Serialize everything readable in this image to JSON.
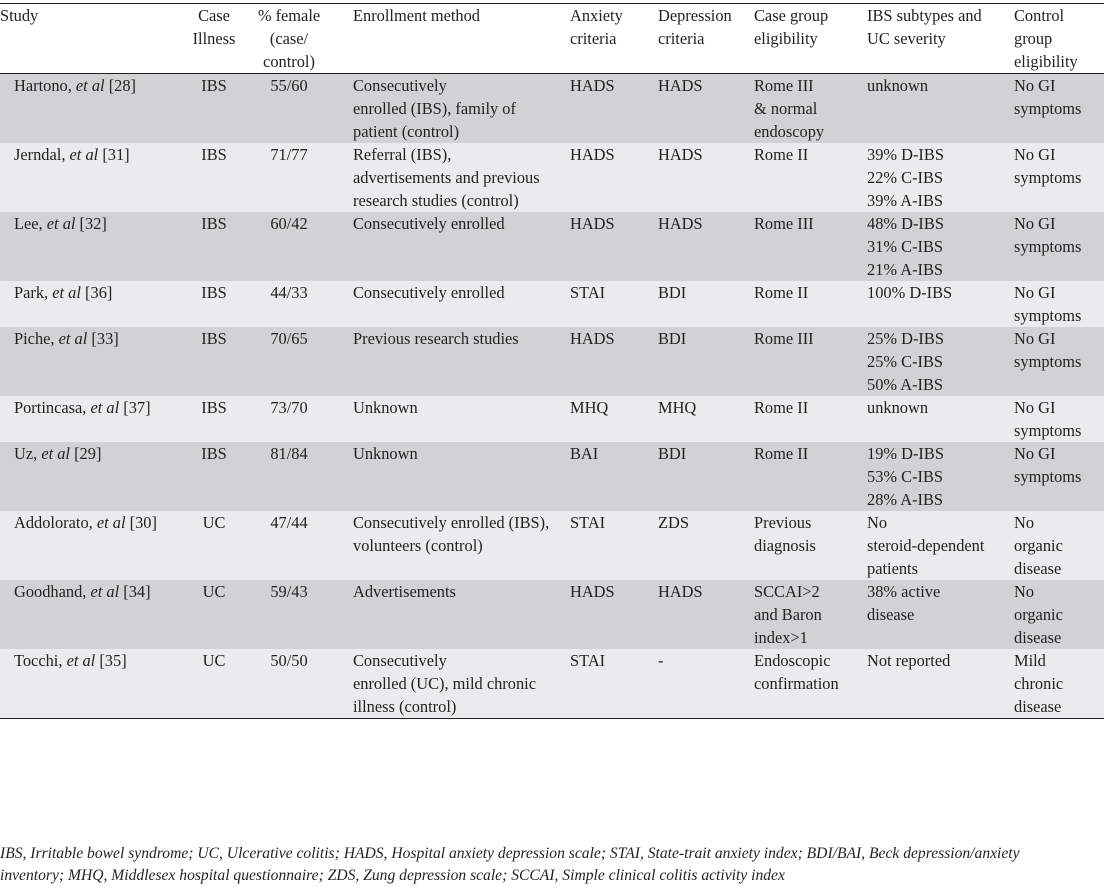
{
  "table": {
    "headers": {
      "study": [
        "Study"
      ],
      "case_illness": [
        "Case",
        "Illness"
      ],
      "pct_female": [
        "% female",
        "(case/",
        "control)"
      ],
      "enrollment": [
        "Enrollment method"
      ],
      "anxiety": [
        "Anxiety",
        "criteria"
      ],
      "depression": [
        "Depression",
        "criteria"
      ],
      "case_eligibility": [
        "Case group",
        "eligibility"
      ],
      "subtypes": [
        "IBS subtypes and",
        "UC severity"
      ],
      "control_eligibility": [
        "Control",
        "group",
        "eligibility"
      ]
    },
    "rows": [
      {
        "author": "Hartono, ",
        "etal": "et al",
        "ref": " [28]",
        "illness": "IBS",
        "female": "55/60",
        "enrollment": [
          "Consecutively",
          "enrolled (IBS), family of",
          "patient (control)"
        ],
        "anxiety": "HADS",
        "depression": "HADS",
        "case_elig": [
          "Rome III",
          "& normal",
          "endoscopy"
        ],
        "subtypes": [
          "unknown"
        ],
        "control": [
          "No GI",
          "symptoms"
        ]
      },
      {
        "author": "Jerndal, ",
        "etal": "et al",
        "ref": " [31]",
        "illness": "IBS",
        "female": "71/77",
        "enrollment": [
          "Referral (IBS),",
          "advertisements and previous",
          "research studies (control)"
        ],
        "anxiety": "HADS",
        "depression": "HADS",
        "case_elig": [
          "Rome II"
        ],
        "subtypes": [
          "39% D-IBS",
          "22% C-IBS",
          "39% A-IBS"
        ],
        "control": [
          "No GI",
          "symptoms"
        ]
      },
      {
        "author": "Lee, ",
        "etal": "et al",
        "ref": " [32]",
        "illness": "IBS",
        "female": "60/42",
        "enrollment": [
          "Consecutively enrolled"
        ],
        "anxiety": "HADS",
        "depression": "HADS",
        "case_elig": [
          "Rome III"
        ],
        "subtypes": [
          "48% D-IBS",
          "31% C-IBS",
          "21% A-IBS"
        ],
        "control": [
          "No GI",
          "symptoms"
        ]
      },
      {
        "author": "Park, ",
        "etal": "et al",
        "ref": " [36]",
        "illness": "IBS",
        "female": "44/33",
        "enrollment": [
          "Consecutively enrolled"
        ],
        "anxiety": "STAI",
        "depression": "BDI",
        "case_elig": [
          "Rome II"
        ],
        "subtypes": [
          "100% D-IBS"
        ],
        "control": [
          "No GI",
          "symptoms"
        ]
      },
      {
        "author": "Piche, ",
        "etal": "et al",
        "ref": " [33]",
        "illness": "IBS",
        "female": "70/65",
        "enrollment": [
          "Previous research studies"
        ],
        "anxiety": "HADS",
        "depression": "BDI",
        "case_elig": [
          "Rome III"
        ],
        "subtypes": [
          "25% D-IBS",
          "25% C-IBS",
          "50% A-IBS"
        ],
        "control": [
          "No GI",
          "symptoms"
        ]
      },
      {
        "author": "Portincasa, ",
        "etal": "et al",
        "ref": " [37]",
        "illness": "IBS",
        "female": "73/70",
        "enrollment": [
          "Unknown"
        ],
        "anxiety": "MHQ",
        "depression": "MHQ",
        "case_elig": [
          "Rome II"
        ],
        "subtypes": [
          "unknown"
        ],
        "control": [
          "No GI",
          "symptoms"
        ]
      },
      {
        "author": "Uz, ",
        "etal": "et al",
        "ref": " [29]",
        "illness": "IBS",
        "female": "81/84",
        "enrollment": [
          "Unknown"
        ],
        "anxiety": "BAI",
        "depression": "BDI",
        "case_elig": [
          "Rome II"
        ],
        "subtypes": [
          "19% D-IBS",
          "53% C-IBS",
          "28% A-IBS"
        ],
        "control": [
          "No GI",
          "symptoms"
        ]
      },
      {
        "author": "Addolorato, ",
        "etal": "et al",
        "ref": " [30]",
        "illness": "UC",
        "female": "47/44",
        "enrollment": [
          "Consecutively enrolled (IBS),",
          "volunteers (control)"
        ],
        "anxiety": "STAI",
        "depression": "ZDS",
        "case_elig": [
          "Previous",
          "diagnosis"
        ],
        "subtypes": [
          "No",
          "steroid-dependent",
          "patients"
        ],
        "control": [
          "No",
          "organic",
          "disease"
        ]
      },
      {
        "author": "Goodhand, ",
        "etal": "et al",
        "ref": " [34]",
        "illness": "UC",
        "female": "59/43",
        "enrollment": [
          "Advertisements"
        ],
        "anxiety": "HADS",
        "depression": "HADS",
        "case_elig": [
          "SCCAI>2",
          "and Baron",
          "index>1"
        ],
        "subtypes": [
          "38% active",
          "disease"
        ],
        "control": [
          "No",
          "organic",
          "disease"
        ]
      },
      {
        "author": "Tocchi, ",
        "etal": "et al",
        "ref": " [35]",
        "illness": "UC",
        "female": "50/50",
        "enrollment": [
          "Consecutively",
          "enrolled (UC), mild chronic",
          "illness (control)"
        ],
        "anxiety": "STAI",
        "depression": "-",
        "case_elig": [
          "Endoscopic",
          "confirmation"
        ],
        "subtypes": [
          "Not reported"
        ],
        "control": [
          "Mild",
          "chronic",
          "disease"
        ]
      }
    ]
  },
  "footnote": [
    "IBS, Irritable bowel syndrome; UC, Ulcerative colitis; HADS, Hospital anxiety depression scale; STAI, State-trait anxiety index; BDI/BAI, Beck depression/anxiety",
    "inventory; MHQ, Middlesex hospital questionnaire; ZDS, Zung depression scale; SCCAI, Simple clinical colitis activity index"
  ]
}
